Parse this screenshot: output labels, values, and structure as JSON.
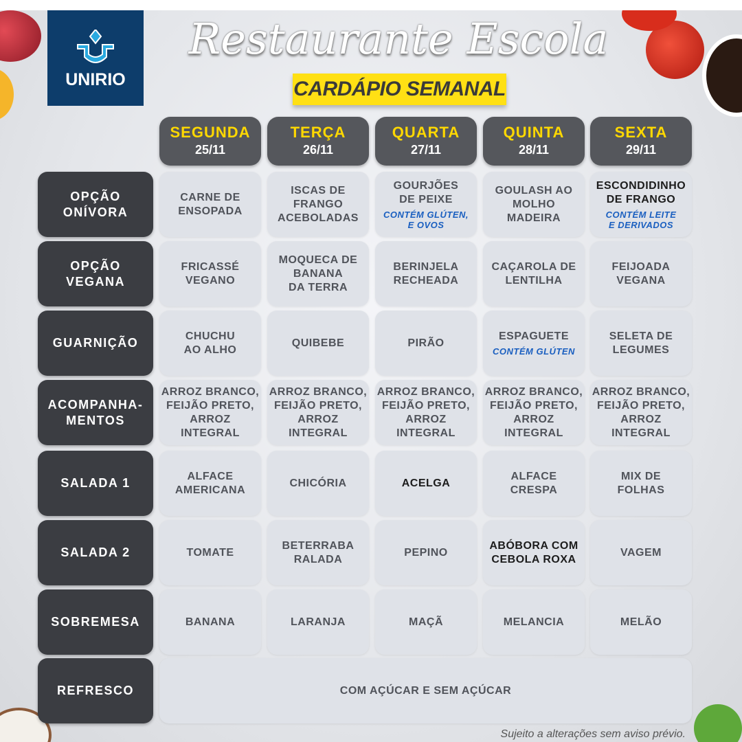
{
  "logo": {
    "text": "UNIRIO"
  },
  "header": {
    "title": "Restaurante Escola",
    "subtitle": "CARDÁPIO SEMANAL"
  },
  "days": [
    {
      "name": "SEGUNDA",
      "date": "25/11"
    },
    {
      "name": "TERÇA",
      "date": "26/11"
    },
    {
      "name": "QUARTA",
      "date": "27/11"
    },
    {
      "name": "QUINTA",
      "date": "28/11"
    },
    {
      "name": "SEXTA",
      "date": "29/11"
    }
  ],
  "rows": [
    {
      "label": "OPÇÃO\nONÍVORA",
      "cells": [
        {
          "text": "CARNE DE\nENSOPADA"
        },
        {
          "text": "ISCAS DE\nFRANGO\nACEBOLADAS"
        },
        {
          "text": "GOURJÕES\nDE PEIXE",
          "note": "CONTÉM GLÚTEN,\nE OVOS"
        },
        {
          "text": "GOULASH AO\nMOLHO\nMADEIRA"
        },
        {
          "text": "ESCONDIDINHO\nDE FRANGO",
          "note": "CONTÉM LEITE\nE DERIVADOS",
          "dark": true
        }
      ]
    },
    {
      "label": "OPÇÃO\nVEGANA",
      "cells": [
        {
          "text": "FRICASSÉ\nVEGANO"
        },
        {
          "text": "MOQUECA DE\nBANANA\nDA TERRA"
        },
        {
          "text": "BERINJELA\nRECHEADA"
        },
        {
          "text": "CAÇAROLA DE\nLENTILHA"
        },
        {
          "text": "FEIJOADA\nVEGANA"
        }
      ]
    },
    {
      "label": "GUARNIÇÃO",
      "cells": [
        {
          "text": "CHUCHU\nAO ALHO"
        },
        {
          "text": "QUIBEBE"
        },
        {
          "text": "PIRÃO"
        },
        {
          "text": "ESPAGUETE",
          "note": "CONTÉM GLÚTEN"
        },
        {
          "text": "SELETA DE\nLEGUMES"
        }
      ]
    },
    {
      "label": "ACOMPANHA-\nMENTOS",
      "cells": [
        {
          "text": "ARROZ BRANCO,\nFEIJÃO PRETO,\nARROZ INTEGRAL"
        },
        {
          "text": "ARROZ BRANCO,\nFEIJÃO PRETO,\nARROZ INTEGRAL"
        },
        {
          "text": "ARROZ BRANCO,\nFEIJÃO PRETO,\nARROZ INTEGRAL"
        },
        {
          "text": "ARROZ BRANCO,\nFEIJÃO PRETO,\nARROZ INTEGRAL"
        },
        {
          "text": "ARROZ BRANCO,\nFEIJÃO PRETO,\nARROZ INTEGRAL"
        }
      ]
    },
    {
      "label": "SALADA 1",
      "cells": [
        {
          "text": "ALFACE\nAMERICANA"
        },
        {
          "text": "CHICÓRIA"
        },
        {
          "text": "ACELGA",
          "dark": true
        },
        {
          "text": "ALFACE\nCRESPA"
        },
        {
          "text": "MIX DE\nFOLHAS"
        }
      ]
    },
    {
      "label": "SALADA 2",
      "cells": [
        {
          "text": "TOMATE"
        },
        {
          "text": "BETERRABA\nRALADA"
        },
        {
          "text": "PEPINO"
        },
        {
          "text": "ABÓBORA COM\nCEBOLA ROXA",
          "dark": true
        },
        {
          "text": "VAGEM"
        }
      ]
    },
    {
      "label": "SOBREMESA",
      "cells": [
        {
          "text": "BANANA"
        },
        {
          "text": "LARANJA"
        },
        {
          "text": "MAÇÃ"
        },
        {
          "text": "MELANCIA"
        },
        {
          "text": "MELÃO"
        }
      ]
    },
    {
      "label": "REFRESCO",
      "span": true,
      "cells": [
        {
          "text": "COM AÇÚCAR E SEM AÇÚCAR"
        }
      ]
    }
  ],
  "footer": "Sujeito a alterações sem aviso prévio.",
  "colors": {
    "logo_bg": "#0d3d6b",
    "subtitle_bg": "#ffe014",
    "day_text": "#ffd800",
    "label_bg": "#3b3d42",
    "cell_bg": "#dfe2e8",
    "note": "#1a5fc0"
  }
}
